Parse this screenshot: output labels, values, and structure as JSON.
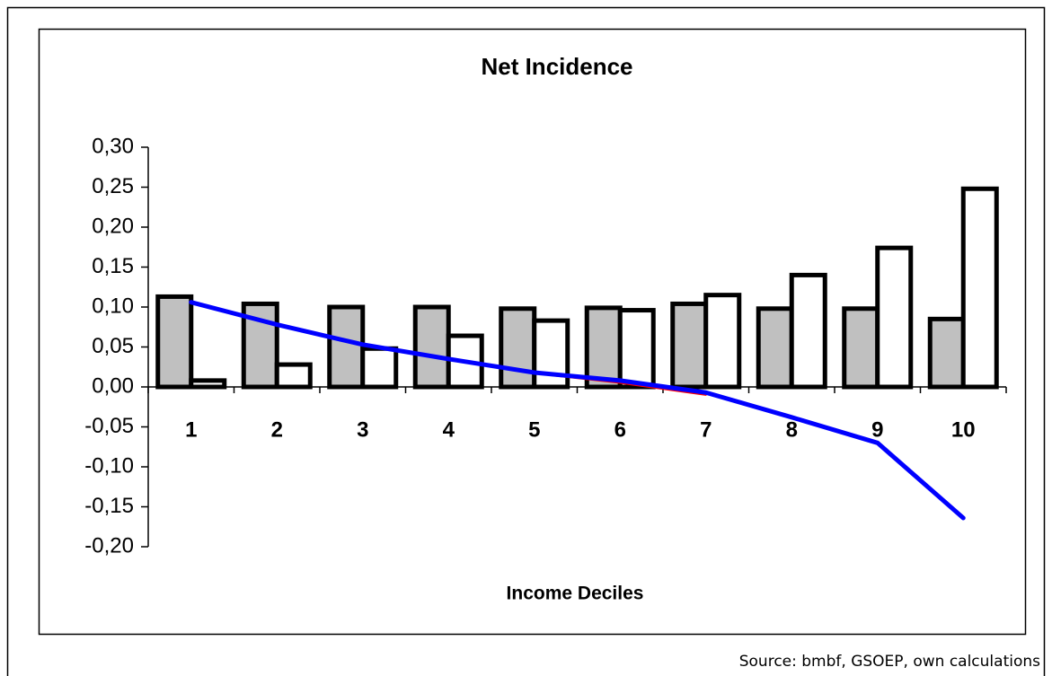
{
  "chart_data": {
    "type": "bar",
    "title": "Net Incidence",
    "x_label": "Income Deciles",
    "source": "Source: bmbf, GSOEP, own calculations",
    "categories": [
      "1",
      "2",
      "3",
      "4",
      "5",
      "6",
      "7",
      "8",
      "9",
      "10"
    ],
    "series": [
      {
        "type": "bar",
        "color": "#c0c0c0",
        "values": [
          0.113,
          0.104,
          0.1,
          0.1,
          0.098,
          0.099,
          0.104,
          0.098,
          0.098,
          0.085
        ]
      },
      {
        "type": "bar",
        "color": "#ffffff",
        "values": [
          0.008,
          0.028,
          0.048,
          0.064,
          0.083,
          0.096,
          0.115,
          0.14,
          0.174,
          0.248
        ]
      },
      {
        "type": "line",
        "color": "#ff0000",
        "values": [
          null,
          null,
          null,
          null,
          0.017,
          0.005,
          -0.01,
          null,
          null,
          null
        ]
      },
      {
        "type": "line",
        "color": "#0000ff",
        "values": [
          0.106,
          0.078,
          0.053,
          0.035,
          0.018,
          0.008,
          -0.007,
          -0.038,
          -0.07,
          -0.164
        ]
      }
    ],
    "ylim": [
      -0.2,
      0.3
    ],
    "yticks": [
      {
        "value": 0.3,
        "label": "0,30"
      },
      {
        "value": 0.25,
        "label": "0,25"
      },
      {
        "value": 0.2,
        "label": "0,20"
      },
      {
        "value": 0.15,
        "label": "0,15"
      },
      {
        "value": 0.1,
        "label": "0,10"
      },
      {
        "value": 0.05,
        "label": "0,05"
      },
      {
        "value": 0,
        "label": "0,00"
      },
      {
        "value": -0.05,
        "label": "-0,05"
      },
      {
        "value": -0.1,
        "label": "-0,10"
      },
      {
        "value": -0.15,
        "label": "-0,15"
      },
      {
        "value": -0.2,
        "label": "-0,20"
      }
    ]
  }
}
